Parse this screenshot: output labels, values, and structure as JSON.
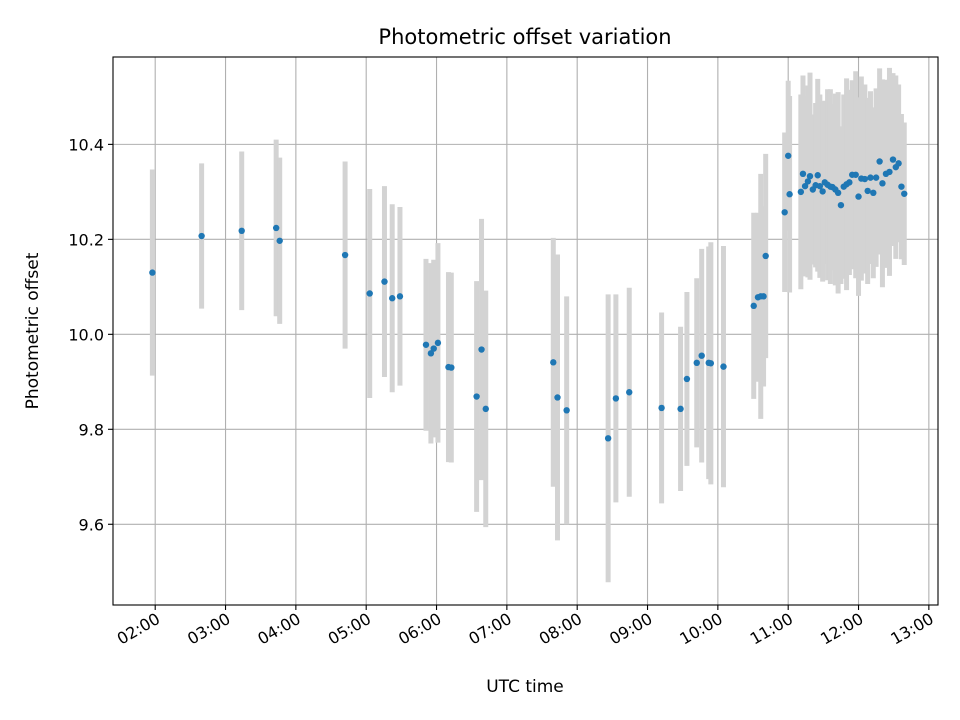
{
  "chart_data": {
    "type": "scatter",
    "title": "Photometric offset variation",
    "xlabel": "UTC time",
    "ylabel": "Photometric offset",
    "x_unit": "UTC time of day (hours)",
    "xlim": [
      1.4,
      13.13
    ],
    "ylim": [
      9.43,
      10.584
    ],
    "x_ticks": [
      2,
      3,
      4,
      5,
      6,
      7,
      8,
      9,
      10,
      11,
      12,
      13
    ],
    "x_tick_labels": [
      "02:00",
      "03:00",
      "04:00",
      "05:00",
      "06:00",
      "07:00",
      "08:00",
      "09:00",
      "10:00",
      "11:00",
      "12:00",
      "13:00"
    ],
    "y_ticks": [
      9.6,
      9.8,
      10.0,
      10.2,
      10.4
    ],
    "y_tick_labels": [
      "9.6",
      "9.8",
      "10.0",
      "10.2",
      "10.4"
    ],
    "grid": true,
    "colors": {
      "points": "#1f77b4",
      "errorbars": "#d3d3d3",
      "grid": "#b0b0b0"
    },
    "series": [
      {
        "x": [
          1.96,
          2.66,
          3.23,
          3.72,
          3.77,
          4.7,
          5.05,
          5.26,
          5.37,
          5.48,
          5.85,
          5.92,
          5.96,
          6.02,
          6.17,
          6.21,
          6.57,
          6.64,
          6.7,
          7.66,
          7.72,
          7.85,
          8.44,
          8.55,
          8.74,
          9.2,
          9.47,
          9.56,
          9.7,
          9.77,
          9.87,
          9.9,
          10.08,
          10.51,
          10.57,
          10.61,
          10.65,
          10.68,
          10.95,
          11.0,
          11.02,
          11.18,
          11.21,
          11.24,
          11.28,
          11.31,
          11.35,
          11.39,
          11.42,
          11.45,
          11.49,
          11.52,
          11.56,
          11.6,
          11.63,
          11.67,
          11.71,
          11.75,
          11.79,
          11.83,
          11.87,
          11.91,
          11.96,
          12.0,
          12.04,
          12.09,
          12.13,
          12.17,
          12.21,
          12.25,
          12.3,
          12.34,
          12.39,
          12.44,
          12.49,
          12.53,
          12.57,
          12.61,
          12.65
        ],
        "y": [
          10.13,
          10.207,
          10.218,
          10.224,
          10.197,
          10.167,
          10.086,
          10.111,
          10.076,
          10.08,
          9.978,
          9.96,
          9.97,
          9.982,
          9.931,
          9.93,
          9.869,
          9.968,
          9.843,
          9.941,
          9.867,
          9.84,
          9.781,
          9.865,
          9.878,
          9.845,
          9.843,
          9.906,
          9.94,
          9.955,
          9.94,
          9.939,
          9.932,
          10.06,
          10.078,
          10.08,
          10.08,
          10.165,
          10.257,
          10.376,
          10.295,
          10.3,
          10.338,
          10.312,
          10.322,
          10.333,
          10.305,
          10.314,
          10.335,
          10.312,
          10.301,
          10.32,
          10.315,
          10.311,
          10.31,
          10.305,
          10.298,
          10.272,
          10.311,
          10.316,
          10.32,
          10.336,
          10.336,
          10.29,
          10.328,
          10.327,
          10.302,
          10.33,
          10.298,
          10.33,
          10.364,
          10.318,
          10.338,
          10.342,
          10.368,
          10.352,
          10.36,
          10.311,
          10.296
        ],
        "yerr": [
          0.217,
          0.153,
          0.167,
          0.186,
          0.175,
          0.197,
          0.22,
          0.201,
          0.198,
          0.188,
          0.181,
          0.19,
          0.187,
          0.21,
          0.2,
          0.2,
          0.243,
          0.275,
          0.249,
          0.262,
          0.301,
          0.24,
          0.303,
          0.219,
          0.22,
          0.201,
          0.173,
          0.183,
          0.178,
          0.225,
          0.245,
          0.255,
          0.254,
          0.196,
          0.178,
          0.258,
          0.19,
          0.215,
          0.168,
          0.158,
          0.207,
          0.205,
          0.207,
          0.19,
          0.202,
          0.218,
          0.158,
          0.173,
          0.203,
          0.193,
          0.19,
          0.172,
          0.201,
          0.205,
          0.175,
          0.202,
          0.212,
          0.166,
          0.194,
          0.223,
          0.195,
          0.199,
          0.218,
          0.209,
          0.215,
          0.199,
          0.196,
          0.182,
          0.18,
          0.188,
          0.196,
          0.219,
          0.198,
          0.219,
          0.182,
          0.193,
          0.166,
          0.153,
          0.15
        ]
      }
    ]
  }
}
